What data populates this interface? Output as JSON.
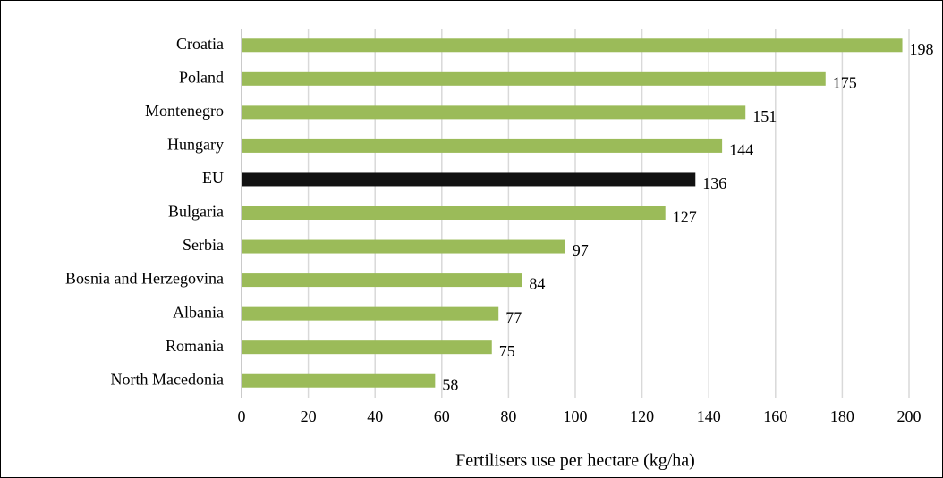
{
  "chart_data": {
    "type": "barh",
    "xlabel": "Fertilisers use per hectare (kg/ha)",
    "categories": [
      "Croatia",
      "Poland",
      "Montenegro",
      "Hungary",
      "EU",
      "Bulgaria",
      "Serbia",
      "Bosnia and Herzegovina",
      "Albania",
      "Romania",
      "North Macedonia"
    ],
    "values": [
      198,
      175,
      151,
      144,
      136,
      127,
      97,
      84,
      77,
      75,
      58
    ],
    "colors": [
      "#9bbb59",
      "#9bbb59",
      "#9bbb59",
      "#9bbb59",
      "#111111",
      "#9bbb59",
      "#9bbb59",
      "#9bbb59",
      "#9bbb59",
      "#9bbb59",
      "#9bbb59"
    ],
    "xlim": [
      0,
      200
    ],
    "xticks": [
      0,
      20,
      40,
      60,
      80,
      100,
      120,
      140,
      160,
      180,
      200
    ],
    "grid": true
  }
}
